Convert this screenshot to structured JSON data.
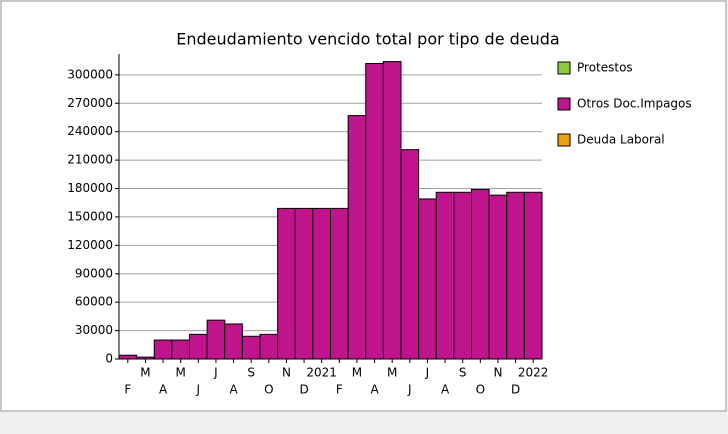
{
  "chart_data": {
    "type": "bar",
    "stacked": true,
    "title": "Endeudamiento vencido total por tipo de deuda",
    "categories": [
      "F",
      "M",
      "A",
      "M",
      "J",
      "J",
      "A",
      "S",
      "O",
      "N",
      "D",
      "2021",
      "F",
      "M",
      "A",
      "M",
      "J",
      "J",
      "A",
      "S",
      "O",
      "N",
      "D",
      "2022"
    ],
    "series": [
      {
        "name": "Protestos",
        "color": "#8ccc3c",
        "values": [
          0,
          0,
          0,
          0,
          0,
          0,
          0,
          0,
          0,
          0,
          0,
          0,
          0,
          0,
          0,
          0,
          0,
          0,
          0,
          0,
          0,
          0,
          0,
          0
        ]
      },
      {
        "name": "Otros Doc.Impagos",
        "color": "#c0148c",
        "values": [
          4000,
          2000,
          20000,
          20000,
          26000,
          41000,
          37000,
          24000,
          26000,
          159000,
          159000,
          159000,
          159000,
          257000,
          312000,
          314000,
          221000,
          169000,
          176000,
          176000,
          179000,
          173000,
          176000,
          176000
        ]
      },
      {
        "name": "Deuda Laboral",
        "color": "#f0a000",
        "values": [
          0,
          0,
          0,
          0,
          0,
          0,
          0,
          0,
          0,
          0,
          0,
          0,
          0,
          0,
          0,
          0,
          0,
          0,
          0,
          0,
          0,
          0,
          0,
          0
        ]
      }
    ],
    "ylim": [
      0,
      322000
    ],
    "yticks": [
      0,
      30000,
      60000,
      90000,
      120000,
      150000,
      180000,
      210000,
      240000,
      270000,
      300000
    ],
    "grid": true,
    "legend": "right"
  }
}
